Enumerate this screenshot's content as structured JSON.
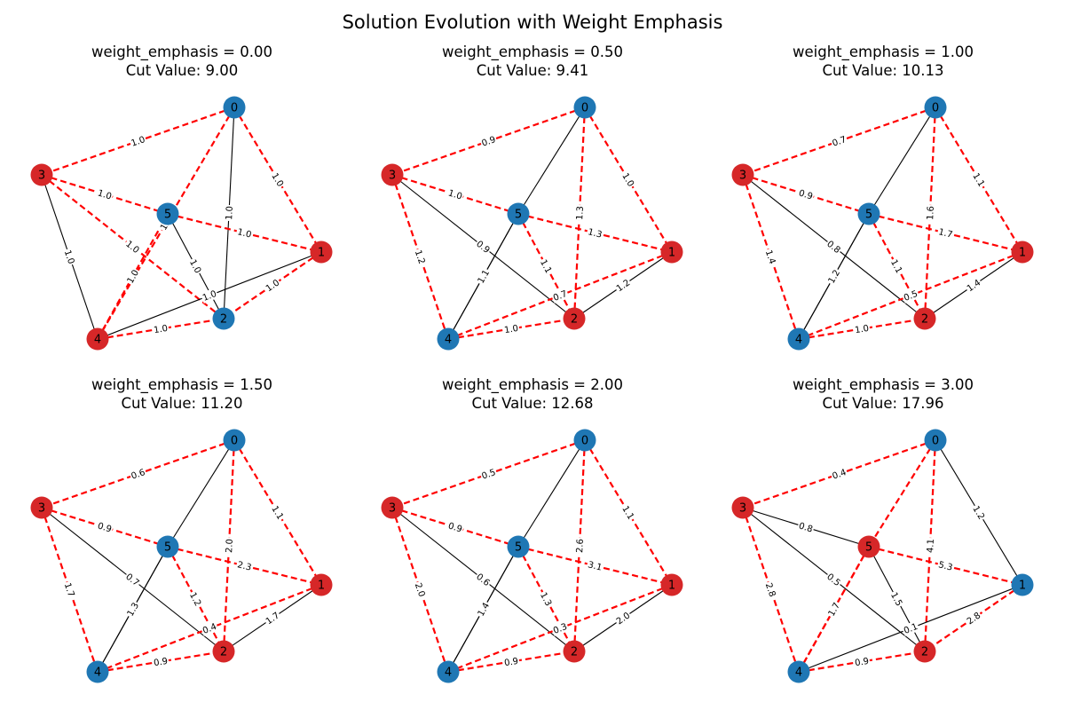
{
  "figure": {
    "title": "Solution Evolution with Weight Emphasis"
  },
  "colors": {
    "set_a": "#1f77b4",
    "set_b": "#d62728",
    "cut_edge": "#ff0000",
    "uncut_edge": "#000000",
    "node_label": "#000000"
  },
  "graphs": [
    {
      "line1": "weight_emphasis = 0.00",
      "line2": "Cut Value: 9.00",
      "partition": {
        "0": "a",
        "1": "b",
        "2": "a",
        "3": "b",
        "4": "b",
        "5": "a"
      },
      "edges": [
        {
          "u": 0,
          "v": 3,
          "w": "1.0",
          "cut": true
        },
        {
          "u": 0,
          "v": 1,
          "w": "1.0",
          "cut": true
        },
        {
          "u": 0,
          "v": 4,
          "w": "1.0",
          "cut": true
        },
        {
          "u": 0,
          "v": 2,
          "w": "1.0",
          "cut": false
        },
        {
          "u": 3,
          "v": 5,
          "w": "1.0",
          "cut": true
        },
        {
          "u": 3,
          "v": 4,
          "w": "1.0",
          "cut": false
        },
        {
          "u": 3,
          "v": 2,
          "w": "1.0",
          "cut": true
        },
        {
          "u": 5,
          "v": 1,
          "w": "1.0",
          "cut": true
        },
        {
          "u": 5,
          "v": 2,
          "w": "1.0",
          "cut": false
        },
        {
          "u": 5,
          "v": 4,
          "w": "1.0",
          "cut": true
        },
        {
          "u": 1,
          "v": 2,
          "w": "1.0",
          "cut": true
        },
        {
          "u": 1,
          "v": 4,
          "w": "1.0",
          "cut": false
        },
        {
          "u": 4,
          "v": 2,
          "w": "1.0",
          "cut": true
        }
      ]
    },
    {
      "line1": "weight_emphasis = 0.50",
      "line2": "Cut Value: 9.41",
      "partition": {
        "0": "a",
        "1": "b",
        "2": "b",
        "3": "b",
        "4": "a",
        "5": "a"
      },
      "edges": [
        {
          "u": 0,
          "v": 3,
          "w": "0.9",
          "cut": true
        },
        {
          "u": 0,
          "v": 1,
          "w": "1.0",
          "cut": true
        },
        {
          "u": 0,
          "v": 5,
          "w": "",
          "cut": false
        },
        {
          "u": 0,
          "v": 2,
          "w": "1.3",
          "cut": true
        },
        {
          "u": 3,
          "v": 5,
          "w": "1.0",
          "cut": true
        },
        {
          "u": 3,
          "v": 4,
          "w": "1.2",
          "cut": true
        },
        {
          "u": 3,
          "v": 2,
          "w": "0.9",
          "cut": false
        },
        {
          "u": 5,
          "v": 1,
          "w": "1.3",
          "cut": true
        },
        {
          "u": 5,
          "v": 4,
          "w": "0.",
          "cut": false
        },
        {
          "u": 5,
          "v": 2,
          "w": "1.1",
          "cut": true
        },
        {
          "u": 1,
          "v": 4,
          "w": "0.7",
          "cut": true
        },
        {
          "u": 1,
          "v": 2,
          "w": "1.2",
          "cut": false
        },
        {
          "u": 4,
          "v": 2,
          "w": "1.0",
          "cut": true
        },
        {
          "u": 4,
          "v": 5,
          "w": "1.1",
          "cut": false
        }
      ]
    },
    {
      "line1": "weight_emphasis = 1.00",
      "line2": "Cut Value: 10.13",
      "partition": {
        "0": "a",
        "1": "b",
        "2": "b",
        "3": "b",
        "4": "a",
        "5": "a"
      },
      "edges": [
        {
          "u": 0,
          "v": 3,
          "w": "0.7",
          "cut": true
        },
        {
          "u": 0,
          "v": 1,
          "w": "1.1",
          "cut": true
        },
        {
          "u": 0,
          "v": 5,
          "w": "",
          "cut": false
        },
        {
          "u": 0,
          "v": 2,
          "w": "1.6",
          "cut": true
        },
        {
          "u": 3,
          "v": 5,
          "w": "0.9",
          "cut": true
        },
        {
          "u": 3,
          "v": 4,
          "w": "1.4",
          "cut": true
        },
        {
          "u": 3,
          "v": 2,
          "w": "0.8",
          "cut": false
        },
        {
          "u": 5,
          "v": 1,
          "w": "1.7",
          "cut": true
        },
        {
          "u": 5,
          "v": 4,
          "w": "0.",
          "cut": false
        },
        {
          "u": 5,
          "v": 2,
          "w": "1.1",
          "cut": true
        },
        {
          "u": 1,
          "v": 4,
          "w": "0.5",
          "cut": true
        },
        {
          "u": 1,
          "v": 2,
          "w": "1.4",
          "cut": false
        },
        {
          "u": 4,
          "v": 2,
          "w": "1.0",
          "cut": true
        },
        {
          "u": 4,
          "v": 5,
          "w": "1.2",
          "cut": false
        }
      ]
    },
    {
      "line1": "weight_emphasis = 1.50",
      "line2": "Cut Value: 11.20",
      "partition": {
        "0": "a",
        "1": "b",
        "2": "b",
        "3": "b",
        "4": "a",
        "5": "a"
      },
      "edges": [
        {
          "u": 0,
          "v": 3,
          "w": "0.6",
          "cut": true
        },
        {
          "u": 0,
          "v": 1,
          "w": "1.1",
          "cut": true
        },
        {
          "u": 0,
          "v": 5,
          "w": "",
          "cut": false
        },
        {
          "u": 0,
          "v": 2,
          "w": "2.0",
          "cut": true
        },
        {
          "u": 3,
          "v": 5,
          "w": "0.9",
          "cut": true
        },
        {
          "u": 3,
          "v": 4,
          "w": "1.7",
          "cut": true
        },
        {
          "u": 3,
          "v": 2,
          "w": "0.7",
          "cut": false
        },
        {
          "u": 5,
          "v": 1,
          "w": "2.3",
          "cut": true
        },
        {
          "u": 5,
          "v": 4,
          "w": "0.",
          "cut": false
        },
        {
          "u": 5,
          "v": 2,
          "w": "1.2",
          "cut": true
        },
        {
          "u": 1,
          "v": 4,
          "w": "0.4",
          "cut": true
        },
        {
          "u": 1,
          "v": 2,
          "w": "1.7",
          "cut": false
        },
        {
          "u": 4,
          "v": 2,
          "w": "0.9",
          "cut": true
        },
        {
          "u": 4,
          "v": 5,
          "w": "1.3",
          "cut": false
        }
      ]
    },
    {
      "line1": "weight_emphasis = 2.00",
      "line2": "Cut Value: 12.68",
      "partition": {
        "0": "a",
        "1": "b",
        "2": "b",
        "3": "b",
        "4": "a",
        "5": "a"
      },
      "edges": [
        {
          "u": 0,
          "v": 3,
          "w": "0.5",
          "cut": true
        },
        {
          "u": 0,
          "v": 1,
          "w": "1.1",
          "cut": true
        },
        {
          "u": 0,
          "v": 5,
          "w": "",
          "cut": false
        },
        {
          "u": 0,
          "v": 2,
          "w": "2.6",
          "cut": true
        },
        {
          "u": 3,
          "v": 5,
          "w": "0.9",
          "cut": true
        },
        {
          "u": 3,
          "v": 4,
          "w": "2.0",
          "cut": true
        },
        {
          "u": 3,
          "v": 2,
          "w": "0.6",
          "cut": false
        },
        {
          "u": 5,
          "v": 1,
          "w": "3.1",
          "cut": true
        },
        {
          "u": 5,
          "v": 4,
          "w": "0.",
          "cut": false
        },
        {
          "u": 5,
          "v": 2,
          "w": "1.3",
          "cut": true
        },
        {
          "u": 1,
          "v": 4,
          "w": "0.3",
          "cut": true
        },
        {
          "u": 1,
          "v": 2,
          "w": "2.0",
          "cut": false
        },
        {
          "u": 4,
          "v": 2,
          "w": "0.9",
          "cut": true
        },
        {
          "u": 4,
          "v": 5,
          "w": "1.4",
          "cut": false
        }
      ]
    },
    {
      "line1": "weight_emphasis = 3.00",
      "line2": "Cut Value: 17.96",
      "partition": {
        "0": "a",
        "1": "a",
        "2": "b",
        "3": "b",
        "4": "a",
        "5": "b"
      },
      "edges": [
        {
          "u": 0,
          "v": 3,
          "w": "0.4",
          "cut": true
        },
        {
          "u": 0,
          "v": 1,
          "w": "1.2",
          "cut": false
        },
        {
          "u": 0,
          "v": 5,
          "w": "",
          "cut": true
        },
        {
          "u": 0,
          "v": 2,
          "w": "4.1",
          "cut": true
        },
        {
          "u": 3,
          "v": 5,
          "w": "0.8",
          "cut": false
        },
        {
          "u": 3,
          "v": 4,
          "w": "2.8",
          "cut": true
        },
        {
          "u": 3,
          "v": 2,
          "w": "0.5",
          "cut": false
        },
        {
          "u": 5,
          "v": 1,
          "w": "5.3",
          "cut": true
        },
        {
          "u": 5,
          "v": 4,
          "w": "0.",
          "cut": true
        },
        {
          "u": 5,
          "v": 2,
          "w": "1.5",
          "cut": false
        },
        {
          "u": 1,
          "v": 4,
          "w": "0.1",
          "cut": false
        },
        {
          "u": 1,
          "v": 2,
          "w": "2.8",
          "cut": true
        },
        {
          "u": 4,
          "v": 2,
          "w": "0.9",
          "cut": true
        },
        {
          "u": 4,
          "v": 5,
          "w": "1.7",
          "cut": true
        }
      ]
    }
  ]
}
